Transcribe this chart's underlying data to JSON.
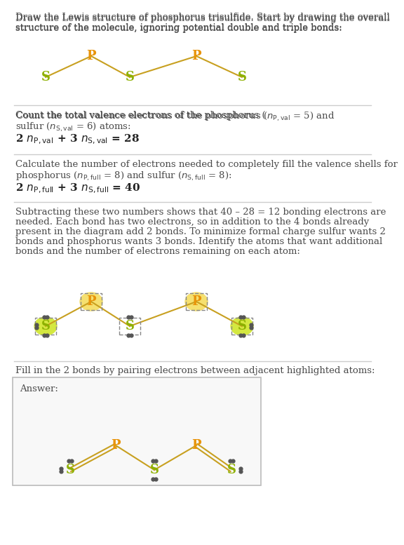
{
  "bg_color": "#ffffff",
  "text_color": "#4a4a4a",
  "P_color": "#e8940a",
  "S_color": "#8db000",
  "highlight_P_bg": "#f5e070",
  "highlight_S_bg": "#d4e840",
  "bond_color_PS": "#c8a020",
  "bond_color_SS": "#8db000",
  "section1_title": "Draw the Lewis structure of phosphorus trisulfide. Start by drawing the overall structure of the molecule, ignoring potential double and triple bonds:",
  "section2_text1": "Count the total valence electrons of the phosphorus (",
  "section2_formula": "2 nₚ,val + 3 nₛ,val = 28",
  "section3_text1": "Calculate the number of electrons needed to completely fill the valence shells for phosphorus (",
  "section3_formula": "2 nₚ,full + 3 nₛ,full = 40",
  "section4_text": "Subtracting these two numbers shows that 40 – 28 = 12 bonding electrons are needed. Each bond has two electrons, so in addition to the 4 bonds already present in the diagram add 2 bonds. To minimize formal charge sulfur wants 2 bonds and phosphorus wants 3 bonds. Identify the atoms that want additional bonds and the number of electrons remaining on each atom:",
  "section5_text": "Fill in the 2 bonds by pairing electrons between adjacent highlighted atoms:",
  "answer_label": "Answer:"
}
